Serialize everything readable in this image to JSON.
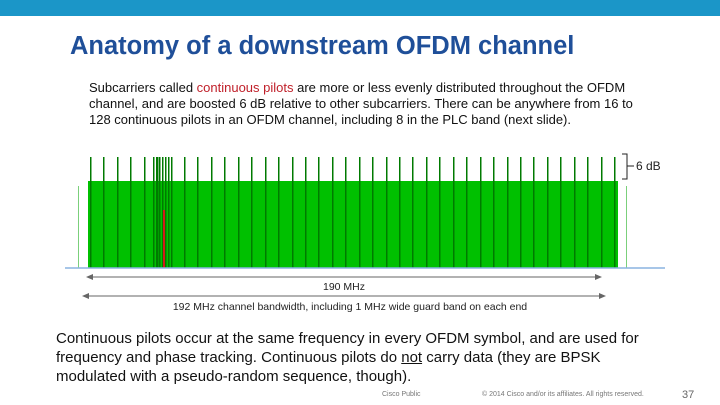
{
  "title": "Anatomy of a downstream OFDM channel",
  "intro": {
    "part1": "Subcarriers called ",
    "highlight": "continuous pilots",
    "part2": " are more or less evenly distributed throughout the OFDM channel, and are boosted 6 dB relative to other subcarriers. There can be anywhere from 16 to 128 continuous pilots in an OFDM channel, including 8 in the PLC band (next slide)."
  },
  "diagram": {
    "boost_label": "6 dB",
    "occupied_label": "190 MHz",
    "channel_label": "192 MHz channel bandwidth, including 1 MHz wide guard band on each end",
    "colors": {
      "subcarrier": "#00c000",
      "pilot": "#007a00",
      "plc_edge": "#d21a1a",
      "baseline": "#8ab4e0"
    }
  },
  "bottom": {
    "part1": "Continuous pilots occur at the same frequency in every OFDM symbol, and are used for frequency and phase tracking. Continuous pilots do ",
    "underlined": "not",
    "part2": " carry data (they are BPSK modulated with a pseudo-random sequence, though)."
  },
  "footer": {
    "left": "Cisco Public",
    "copyright": "© 2014 Cisco and/or its affiliates. All rights reserved.",
    "page": "37"
  },
  "colors": {
    "topbar": "#1b96c8",
    "title": "#1f4f99"
  }
}
